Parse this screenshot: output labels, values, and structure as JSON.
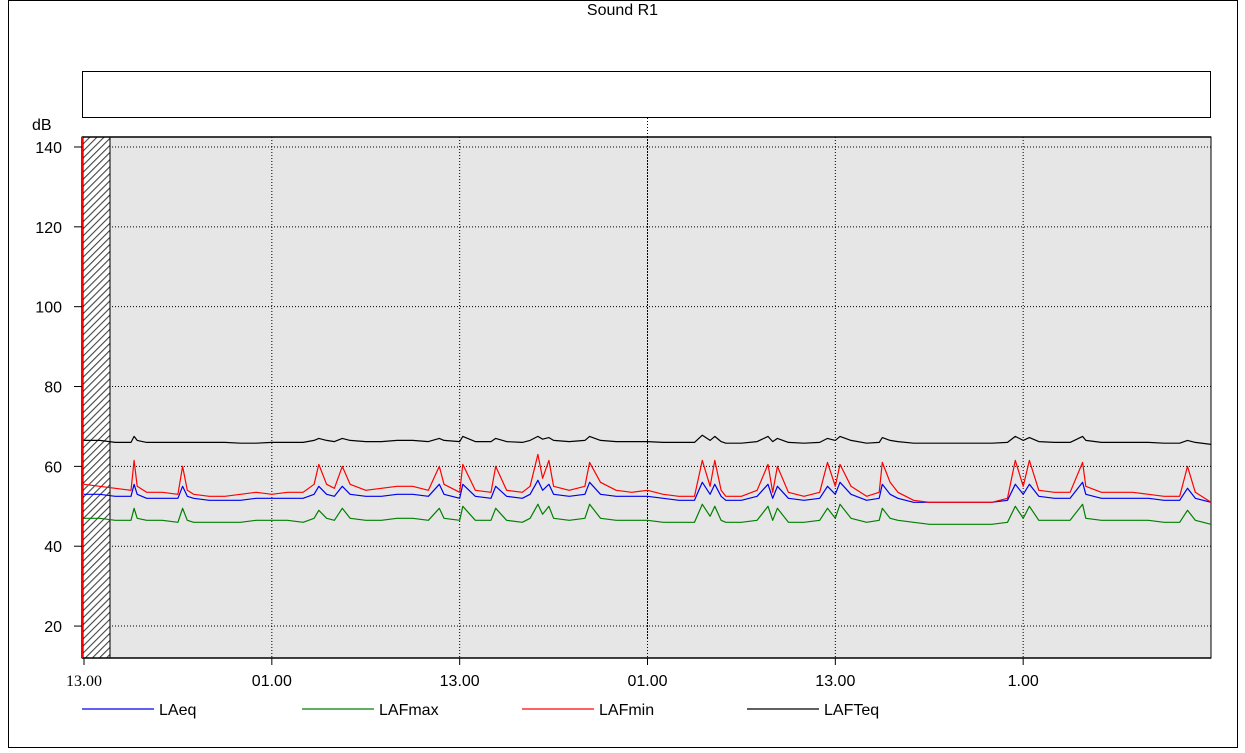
{
  "chart_data": {
    "type": "line",
    "title": "Sound R1",
    "ylabel": "dB",
    "xlabel": "",
    "ylim": [
      12,
      142.5
    ],
    "y_ticks": [
      20,
      40,
      60,
      80,
      100,
      120,
      140
    ],
    "x_ticks": [
      {
        "pos": 0,
        "label": "13.00"
      },
      {
        "pos": 12,
        "label": "01.00"
      },
      {
        "pos": 24,
        "label": "13.00"
      },
      {
        "pos": 36,
        "label": "01.00"
      },
      {
        "pos": 48,
        "label": "13.00"
      },
      {
        "pos": 60,
        "label": "1.00"
      }
    ],
    "xlim": [
      0,
      72
    ],
    "grid": true,
    "legend_position": "bottom",
    "colors": {
      "LAeq": "#0000ee",
      "LAFmax": "#008000",
      "LAFmin": "#ff0000",
      "LAFTeq": "#000000",
      "plot_bg": "#e6e6e6",
      "cursor": "#ff0000"
    },
    "series": [
      {
        "name": "LAeq",
        "x": [
          0,
          1,
          2,
          3,
          3.2,
          3.4,
          4,
          5,
          6,
          6.3,
          6.6,
          7,
          8,
          9,
          10,
          11,
          12,
          13,
          14,
          14.7,
          15,
          15.5,
          16,
          16.5,
          17,
          18,
          19,
          20,
          21,
          22,
          22.7,
          23,
          24,
          24.2,
          25,
          26,
          26.3,
          27,
          28,
          28.5,
          29,
          29.3,
          29.7,
          30,
          31,
          32,
          32.3,
          33,
          34,
          35,
          36,
          37,
          38,
          39,
          39.5,
          40,
          40.3,
          40.7,
          41,
          42,
          43,
          43.7,
          44,
          44.3,
          45,
          46,
          47,
          47.5,
          48,
          48.3,
          49,
          50,
          50.8,
          51,
          51.5,
          52,
          53,
          54,
          55,
          56,
          57,
          58,
          59,
          59.5,
          60,
          60.4,
          61,
          62,
          63,
          63.8,
          64,
          65,
          66,
          67,
          68,
          69,
          70,
          70.5,
          71,
          72
        ],
        "y": [
          53,
          53,
          52.5,
          52.5,
          55.5,
          53,
          52,
          52,
          52,
          55,
          52.5,
          52,
          51.5,
          51.5,
          51.5,
          52,
          52,
          52,
          52,
          53,
          55,
          53,
          52.5,
          55,
          53,
          52.5,
          52.5,
          53,
          53,
          52.5,
          55.5,
          53,
          52,
          55.5,
          52.5,
          52,
          55,
          52.5,
          52,
          53,
          56.5,
          54,
          55.5,
          53,
          52.5,
          53,
          56,
          53,
          52.5,
          52.5,
          52.5,
          52,
          51.5,
          51.5,
          56,
          53,
          55.5,
          52.5,
          51.5,
          51.5,
          52.5,
          55.5,
          52,
          55,
          52,
          51.5,
          52,
          55,
          53,
          56,
          53,
          51.5,
          52,
          55.5,
          53,
          52,
          51,
          51,
          51,
          51,
          51,
          51,
          51.5,
          55.5,
          53,
          55.5,
          52.5,
          52,
          52,
          56,
          53,
          52,
          52,
          52,
          52,
          51.5,
          51.5,
          54.5,
          52,
          51
        ]
      },
      {
        "name": "LAFmax",
        "x": [
          0,
          1,
          2,
          3,
          3.2,
          3.4,
          4,
          5,
          6,
          6.3,
          6.6,
          7,
          8,
          9,
          10,
          11,
          12,
          13,
          14,
          14.7,
          15,
          15.5,
          16,
          16.5,
          17,
          18,
          19,
          20,
          21,
          22,
          22.7,
          23,
          24,
          24.2,
          25,
          26,
          26.3,
          27,
          28,
          28.5,
          29,
          29.3,
          29.7,
          30,
          31,
          32,
          32.3,
          33,
          34,
          35,
          36,
          37,
          38,
          39,
          39.5,
          40,
          40.3,
          40.7,
          41,
          42,
          43,
          43.7,
          44,
          44.3,
          45,
          46,
          47,
          47.5,
          48,
          48.3,
          49,
          50,
          50.8,
          51,
          51.5,
          52,
          53,
          54,
          55,
          56,
          57,
          58,
          59,
          59.5,
          60,
          60.4,
          61,
          62,
          63,
          63.8,
          64,
          65,
          66,
          67,
          68,
          69,
          70,
          70.5,
          71,
          72
        ],
        "y": [
          47,
          47,
          46.5,
          46.5,
          49.5,
          47,
          46.5,
          46.5,
          46,
          49.5,
          46.5,
          46,
          46,
          46,
          46,
          46.5,
          46.5,
          46.5,
          46,
          47,
          49,
          47,
          46.5,
          49.5,
          47,
          46.5,
          46.5,
          47,
          47,
          46.5,
          49.5,
          47,
          46.5,
          50,
          46.5,
          46.5,
          49.5,
          46.5,
          46,
          47,
          50.5,
          48,
          50,
          47,
          46.5,
          47,
          50.5,
          47,
          46.5,
          46.5,
          46.5,
          46,
          46,
          46,
          50.5,
          47.5,
          50,
          46.5,
          46,
          46,
          46.5,
          50,
          46.5,
          49.5,
          46,
          46,
          46.5,
          49.5,
          47,
          50.5,
          47,
          46,
          46.5,
          49.5,
          47,
          46.5,
          46,
          45.5,
          45.5,
          45.5,
          45.5,
          45.5,
          46,
          50,
          47,
          50,
          46.5,
          46.5,
          46.5,
          50.5,
          47,
          46.5,
          46.5,
          46.5,
          46.5,
          46,
          46,
          49,
          46.5,
          45.5
        ]
      },
      {
        "name": "LAFmin",
        "x": [
          0,
          1,
          2,
          3,
          3.2,
          3.4,
          4,
          5,
          6,
          6.3,
          6.6,
          7,
          8,
          9,
          10,
          11,
          12,
          13,
          14,
          14.7,
          15,
          15.5,
          16,
          16.5,
          17,
          18,
          19,
          20,
          21,
          22,
          22.7,
          23,
          24,
          24.2,
          25,
          26,
          26.3,
          27,
          28,
          28.5,
          29,
          29.3,
          29.7,
          30,
          31,
          32,
          32.3,
          33,
          34,
          35,
          36,
          37,
          38,
          39,
          39.5,
          40,
          40.3,
          40.7,
          41,
          42,
          43,
          43.7,
          44,
          44.3,
          45,
          46,
          47,
          47.5,
          48,
          48.3,
          49,
          50,
          50.8,
          51,
          51.5,
          52,
          53,
          54,
          55,
          56,
          57,
          58,
          59,
          59.5,
          60,
          60.4,
          61,
          62,
          63,
          63.8,
          64,
          65,
          66,
          67,
          68,
          69,
          70,
          70.5,
          71,
          72
        ],
        "y": [
          55.5,
          55,
          54.5,
          54,
          61.5,
          55,
          53.5,
          53.5,
          53,
          60,
          54,
          53,
          52.5,
          52.5,
          53,
          53.5,
          53,
          53.5,
          53.5,
          55.5,
          60.5,
          55.5,
          54.5,
          60,
          55.5,
          54,
          54.5,
          55,
          55,
          54,
          60,
          55.5,
          53.5,
          60.5,
          54,
          53.5,
          60,
          54,
          53.5,
          55,
          63,
          57,
          61.5,
          55,
          54,
          55,
          61,
          56,
          54,
          53.5,
          54,
          53,
          52.5,
          52.5,
          61.5,
          55,
          61.5,
          54,
          52.5,
          52.5,
          54,
          60.5,
          53.5,
          60,
          53.5,
          52.5,
          53.5,
          61,
          55,
          60.5,
          55,
          52.5,
          53.5,
          61,
          56,
          53.5,
          51.5,
          51,
          51,
          51,
          51,
          51,
          52,
          61.5,
          55,
          61.5,
          54,
          53.5,
          53.5,
          61,
          55,
          53.5,
          53.5,
          53.5,
          53,
          52.5,
          52.5,
          60,
          53.5,
          51
        ]
      },
      {
        "name": "LAFTeq",
        "x": [
          0,
          1,
          2,
          3,
          3.2,
          3.4,
          4,
          5,
          6,
          7,
          8,
          9,
          10,
          11,
          12,
          13,
          14,
          14.7,
          15,
          15.5,
          16,
          16.5,
          17,
          18,
          19,
          20,
          21,
          22,
          22.7,
          23,
          24,
          24.2,
          25,
          26,
          26.3,
          27,
          28,
          28.5,
          29,
          29.3,
          29.7,
          30,
          31,
          32,
          32.3,
          33,
          34,
          35,
          36,
          37,
          38,
          39,
          39.5,
          40,
          40.3,
          40.7,
          41,
          42,
          43,
          43.7,
          44,
          44.3,
          45,
          46,
          47,
          47.5,
          48,
          48.3,
          49,
          50,
          50.8,
          51,
          51.5,
          52,
          53,
          54,
          55,
          56,
          57,
          58,
          59,
          59.5,
          60,
          60.4,
          61,
          62,
          63,
          63.8,
          64,
          65,
          66,
          67,
          68,
          69,
          70,
          70.5,
          71,
          72
        ],
        "y": [
          66.5,
          66.5,
          66,
          66,
          67.5,
          66.5,
          66,
          66,
          66,
          66,
          66,
          66,
          65.8,
          65.8,
          66,
          66,
          66,
          66.5,
          67,
          66.5,
          66.2,
          67,
          66.5,
          66.2,
          66.2,
          66.5,
          66.5,
          66.2,
          67,
          66.5,
          66.2,
          67.5,
          66.2,
          66.2,
          67,
          66.2,
          66,
          66.5,
          67.5,
          66.8,
          67.2,
          66.5,
          66.2,
          66.5,
          67.5,
          66.5,
          66.2,
          66.2,
          66.2,
          66,
          66,
          66,
          67.8,
          66.5,
          67.5,
          66.2,
          65.8,
          65.8,
          66.2,
          67.5,
          66.2,
          67,
          66,
          65.8,
          66,
          67,
          66.5,
          67.5,
          66.5,
          65.8,
          66,
          67.2,
          66.5,
          66.2,
          65.8,
          65.8,
          65.8,
          65.8,
          65.8,
          65.8,
          66,
          67.5,
          66.5,
          67.2,
          66.2,
          66,
          66,
          67.5,
          66.5,
          66,
          66,
          66,
          66,
          65.8,
          65.8,
          66.5,
          66,
          65.5
        ]
      }
    ],
    "legend": [
      "LAeq",
      "LAFmax",
      "LAFmin",
      "LAFTeq"
    ]
  }
}
